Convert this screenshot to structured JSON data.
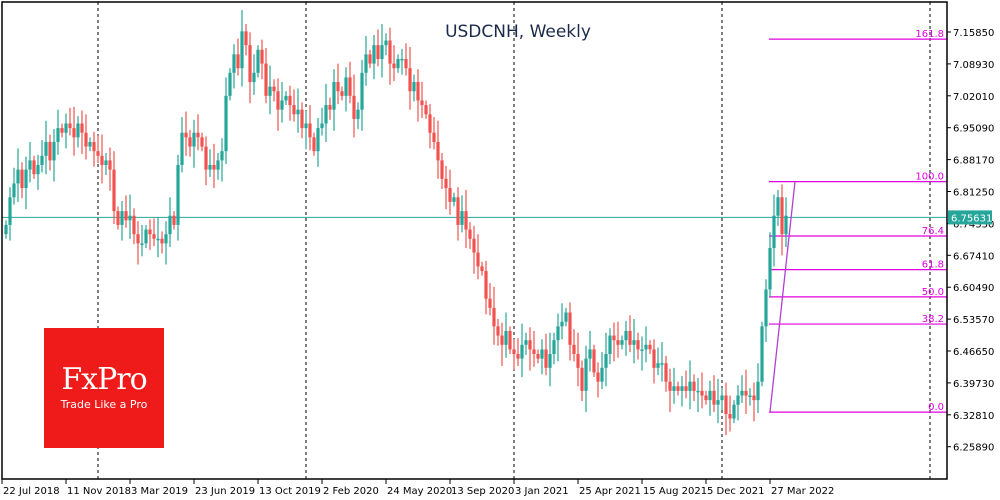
{
  "chart_data": {
    "type": "candlestick",
    "title": "USDCNH, Weekly",
    "symbol": "USDCNH",
    "timeframe": "Weekly",
    "xlabel": "",
    "ylabel": "",
    "ylim": [
      6.2,
      7.21
    ],
    "y_ticks": [
      7.1585,
      7.0893,
      7.0201,
      6.9509,
      6.8817,
      6.8125,
      6.7433,
      6.6741,
      6.6049,
      6.5357,
      6.4665,
      6.3973,
      6.3281,
      6.2589
    ],
    "y_tick_labels": [
      "7.15850",
      "7.08930",
      "7.02010",
      "6.95090",
      "6.88170",
      "6.81250",
      "6.74330",
      "6.67410",
      "6.60490",
      "6.53570",
      "6.46650",
      "6.39730",
      "6.32810",
      "6.25890"
    ],
    "x_tick_labels": [
      "22 Jul 2018",
      "11 Nov 2018",
      "3 Mar 2019",
      "23 Jun 2019",
      "13 Oct 2019",
      "2 Feb 2020",
      "24 May 2020",
      "13 Sep 2020",
      "3 Jan 2021",
      "25 Apr 2021",
      "15 Aug 2021",
      "5 Dec 2021",
      "27 Mar 2022"
    ],
    "current_price": 6.75631,
    "current_price_label": "6.75631",
    "grid": false,
    "period_separators": [
      "2019-01",
      "2020-01",
      "2021-01",
      "2022-01",
      "2023-01"
    ],
    "fibonacci": {
      "levels": [
        {
          "label": "161.8",
          "value": 7.143
        },
        {
          "label": "100.0",
          "value": 6.834
        },
        {
          "label": "76.4",
          "value": 6.716
        },
        {
          "label": "61.8",
          "value": 6.643
        },
        {
          "label": "50.0",
          "value": 6.584
        },
        {
          "label": "38.2",
          "value": 6.525
        },
        {
          "label": "0.0",
          "value": 6.334
        }
      ],
      "color": "#e000e0"
    },
    "weekly_closes": [
      6.74,
      6.8,
      6.83,
      6.86,
      6.82,
      6.86,
      6.88,
      6.85,
      6.87,
      6.89,
      6.92,
      6.88,
      6.92,
      6.95,
      6.94,
      6.96,
      6.95,
      6.93,
      6.96,
      6.94,
      6.91,
      6.92,
      6.9,
      6.89,
      6.87,
      6.88,
      6.86,
      6.77,
      6.74,
      6.77,
      6.75,
      6.76,
      6.72,
      6.7,
      6.7,
      6.73,
      6.72,
      6.71,
      6.71,
      6.7,
      6.72,
      6.76,
      6.74,
      6.87,
      6.94,
      6.93,
      6.91,
      6.94,
      6.93,
      6.91,
      6.86,
      6.87,
      6.86,
      6.88,
      6.9,
      7.02,
      7.07,
      7.11,
      7.08,
      7.16,
      7.13,
      7.05,
      7.07,
      7.12,
      7.09,
      7.02,
      7.04,
      7.03,
      6.99,
      7.01,
      7.02,
      7.0,
      6.98,
      6.99,
      6.95,
      6.96,
      6.93,
      6.9,
      6.95,
      6.96,
      7.0,
      6.99,
      7.05,
      7.03,
      7.02,
      7.06,
      7.02,
      6.97,
      6.99,
      7.07,
      7.11,
      7.09,
      7.13,
      7.1,
      7.13,
      7.14,
      7.09,
      7.08,
      7.1,
      7.1,
      7.08,
      7.03,
      7.05,
      7.01,
      7.0,
      6.98,
      6.94,
      6.92,
      6.88,
      6.84,
      6.82,
      6.79,
      6.8,
      6.74,
      6.77,
      6.73,
      6.71,
      6.68,
      6.65,
      6.64,
      6.58,
      6.56,
      6.52,
      6.5,
      6.48,
      6.51,
      6.47,
      6.46,
      6.45,
      6.48,
      6.49,
      6.47,
      6.46,
      6.45,
      6.47,
      6.43,
      6.46,
      6.49,
      6.52,
      6.53,
      6.55,
      6.48,
      6.46,
      6.43,
      6.38,
      6.45,
      6.47,
      6.42,
      6.4,
      6.43,
      6.46,
      6.5,
      6.49,
      6.48,
      6.49,
      6.51,
      6.48,
      6.49,
      6.47,
      6.47,
      6.48,
      6.47,
      6.43,
      6.44,
      6.44,
      6.4,
      6.38,
      6.39,
      6.38,
      6.39,
      6.38,
      6.4,
      6.38,
      6.38,
      6.37,
      6.36,
      6.38,
      6.35,
      6.36,
      6.37,
      6.33,
      6.32,
      6.35,
      6.37,
      6.38,
      6.37,
      6.37,
      6.36,
      6.4,
      6.52,
      6.6,
      6.69,
      6.76,
      6.8,
      6.72,
      6.76
    ]
  },
  "logo": {
    "brand": "FxPro",
    "tagline": "Trade Like a Pro"
  }
}
